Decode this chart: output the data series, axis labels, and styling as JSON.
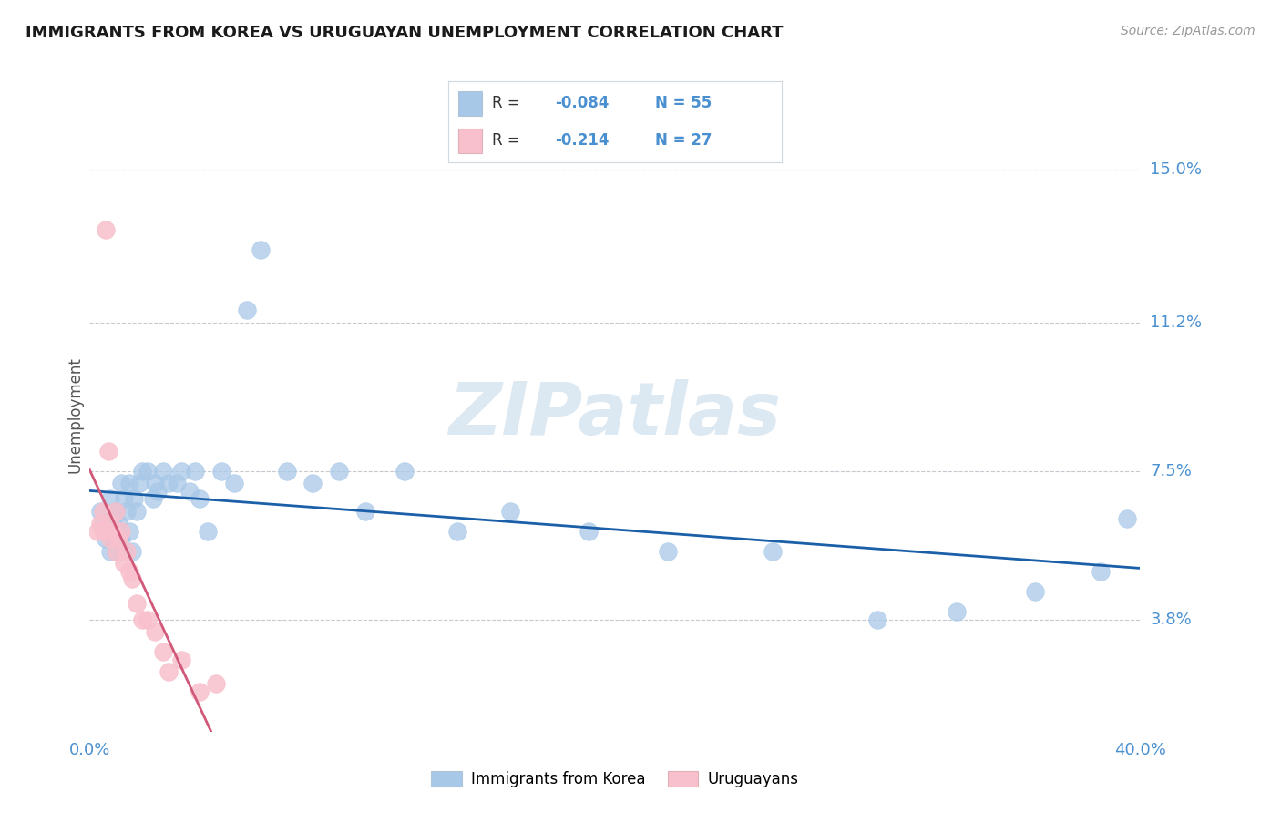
{
  "title": "IMMIGRANTS FROM KOREA VS URUGUAYAN UNEMPLOYMENT CORRELATION CHART",
  "source": "Source: ZipAtlas.com",
  "ylabel": "Unemployment",
  "yticks": [
    0.038,
    0.075,
    0.112,
    0.15
  ],
  "ytick_labels": [
    "3.8%",
    "7.5%",
    "11.2%",
    "15.0%"
  ],
  "xmin": 0.0,
  "xmax": 0.4,
  "ymin": 0.01,
  "ymax": 0.168,
  "legend_label1": "Immigrants from Korea",
  "legend_label2": "Uruguayans",
  "blue_color": "#a8c8e8",
  "pink_color": "#f8c0cc",
  "trend_blue": "#1a5fa8",
  "trend_pink_solid": "#d05878",
  "trend_pink_dash": "#d8a0b0",
  "watermark": "ZIPatlas",
  "watermark_color": "#dce8f2",
  "title_color": "#1a1a1a",
  "axis_label_color": "#4a90d0",
  "tick_color": "#4a90d0",
  "blue_scatter_x": [
    0.004,
    0.005,
    0.006,
    0.007,
    0.008,
    0.008,
    0.009,
    0.009,
    0.01,
    0.01,
    0.011,
    0.011,
    0.012,
    0.012,
    0.013,
    0.013,
    0.014,
    0.015,
    0.015,
    0.016,
    0.017,
    0.018,
    0.019,
    0.02,
    0.022,
    0.024,
    0.025,
    0.026,
    0.028,
    0.03,
    0.033,
    0.035,
    0.038,
    0.04,
    0.042,
    0.045,
    0.05,
    0.055,
    0.06,
    0.065,
    0.075,
    0.085,
    0.095,
    0.105,
    0.12,
    0.14,
    0.16,
    0.19,
    0.22,
    0.26,
    0.3,
    0.33,
    0.36,
    0.385,
    0.395
  ],
  "blue_scatter_y": [
    0.065,
    0.062,
    0.058,
    0.06,
    0.068,
    0.055,
    0.063,
    0.058,
    0.065,
    0.055,
    0.06,
    0.062,
    0.058,
    0.072,
    0.055,
    0.068,
    0.065,
    0.06,
    0.072,
    0.055,
    0.068,
    0.065,
    0.072,
    0.075,
    0.075,
    0.068,
    0.072,
    0.07,
    0.075,
    0.072,
    0.072,
    0.075,
    0.07,
    0.075,
    0.068,
    0.06,
    0.075,
    0.072,
    0.115,
    0.13,
    0.075,
    0.072,
    0.075,
    0.065,
    0.075,
    0.06,
    0.065,
    0.06,
    0.055,
    0.055,
    0.038,
    0.04,
    0.045,
    0.05,
    0.063
  ],
  "pink_scatter_x": [
    0.003,
    0.004,
    0.005,
    0.005,
    0.006,
    0.007,
    0.007,
    0.008,
    0.008,
    0.009,
    0.01,
    0.01,
    0.011,
    0.012,
    0.013,
    0.014,
    0.015,
    0.016,
    0.018,
    0.02,
    0.022,
    0.025,
    0.028,
    0.03,
    0.035,
    0.042,
    0.048
  ],
  "pink_scatter_y": [
    0.06,
    0.062,
    0.06,
    0.065,
    0.135,
    0.08,
    0.06,
    0.062,
    0.058,
    0.06,
    0.055,
    0.065,
    0.058,
    0.06,
    0.052,
    0.055,
    0.05,
    0.048,
    0.042,
    0.038,
    0.038,
    0.035,
    0.03,
    0.025,
    0.028,
    0.02,
    0.022
  ]
}
